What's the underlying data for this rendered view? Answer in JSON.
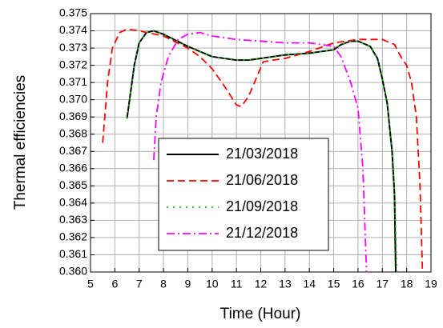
{
  "chart_data": {
    "type": "line",
    "xlabel": "Time (Hour)",
    "ylabel": "Thermal efficiencies",
    "xlim": [
      5,
      19
    ],
    "xticks": [
      5,
      6,
      7,
      8,
      9,
      10,
      11,
      12,
      13,
      14,
      15,
      16,
      17,
      18,
      19
    ],
    "ylim": [
      0.36,
      0.375
    ],
    "yticks": [
      {
        "value": 0.36,
        "label": "0.360"
      },
      0.361,
      0.362,
      0.363,
      0.364,
      0.365,
      0.366,
      0.367,
      0.368,
      0.369,
      {
        "value": 0.37,
        "label": "0.370"
      },
      0.371,
      0.372,
      0.373,
      0.374,
      0.375
    ],
    "grid": true,
    "legend": "center",
    "series": [
      {
        "name": "21/03/2018",
        "color": "#000000",
        "dash": "solid",
        "x": [
          6.5,
          6.8,
          7.0,
          7.3,
          7.6,
          8,
          9,
          10,
          11,
          11.5,
          12,
          13,
          14,
          15,
          15.3,
          15.7,
          16,
          16.5,
          16.8,
          17,
          17.2,
          17.4,
          17.5,
          17.55
        ],
        "values": [
          0.3689,
          0.372,
          0.3733,
          0.3739,
          0.374,
          0.3738,
          0.3731,
          0.3725,
          0.3723,
          0.3723,
          0.3724,
          0.3726,
          0.3727,
          0.3729,
          0.3732,
          0.3734,
          0.3734,
          0.3731,
          0.3724,
          0.3712,
          0.3698,
          0.367,
          0.3645,
          0.36
        ]
      },
      {
        "name": "21/06/2018",
        "color": "#ff0000",
        "dash": "dashed",
        "x": [
          5.5,
          5.7,
          5.9,
          6.2,
          6.5,
          7,
          8,
          9,
          9.5,
          10,
          10.5,
          11,
          11.2,
          11.5,
          11.8,
          12.1,
          12.5,
          13,
          14,
          15,
          16,
          17,
          17.5,
          17.8,
          18,
          18.2,
          18.4,
          18.55,
          18.65
        ],
        "values": [
          0.3675,
          0.371,
          0.373,
          0.3739,
          0.3741,
          0.374,
          0.3737,
          0.373,
          0.3725,
          0.3718,
          0.3708,
          0.3697,
          0.3696,
          0.3702,
          0.3712,
          0.3722,
          0.3723,
          0.3724,
          0.3728,
          0.3733,
          0.3735,
          0.3735,
          0.3732,
          0.3724,
          0.372,
          0.371,
          0.369,
          0.365,
          0.36
        ]
      },
      {
        "name": "21/09/2018",
        "color": "#00cc00",
        "dash": "dotted",
        "x": [
          6.5,
          6.8,
          7.0,
          7.3,
          7.6,
          8,
          9,
          10,
          11,
          11.5,
          12,
          13,
          14,
          15,
          15.3,
          15.7,
          16,
          16.5,
          16.8,
          17,
          17.2,
          17.4,
          17.5,
          17.6
        ],
        "values": [
          0.3689,
          0.372,
          0.3733,
          0.3739,
          0.374,
          0.3738,
          0.3731,
          0.3725,
          0.3723,
          0.3723,
          0.3724,
          0.3726,
          0.3727,
          0.3729,
          0.3732,
          0.3734,
          0.3734,
          0.3731,
          0.3724,
          0.3712,
          0.3698,
          0.367,
          0.3645,
          0.36
        ]
      },
      {
        "name": "21/12/2018",
        "color": "#ff00ff",
        "dash": "dashdot",
        "x": [
          7.6,
          7.7,
          7.9,
          8.2,
          8.6,
          9,
          9.5,
          10,
          11,
          12,
          13,
          14,
          15,
          15.3,
          15.7,
          16,
          16.2,
          16.35
        ],
        "values": [
          0.3665,
          0.369,
          0.371,
          0.3725,
          0.3735,
          0.3738,
          0.3739,
          0.3737,
          0.3735,
          0.3734,
          0.3733,
          0.3733,
          0.3731,
          0.3725,
          0.371,
          0.3695,
          0.366,
          0.36
        ]
      }
    ]
  }
}
